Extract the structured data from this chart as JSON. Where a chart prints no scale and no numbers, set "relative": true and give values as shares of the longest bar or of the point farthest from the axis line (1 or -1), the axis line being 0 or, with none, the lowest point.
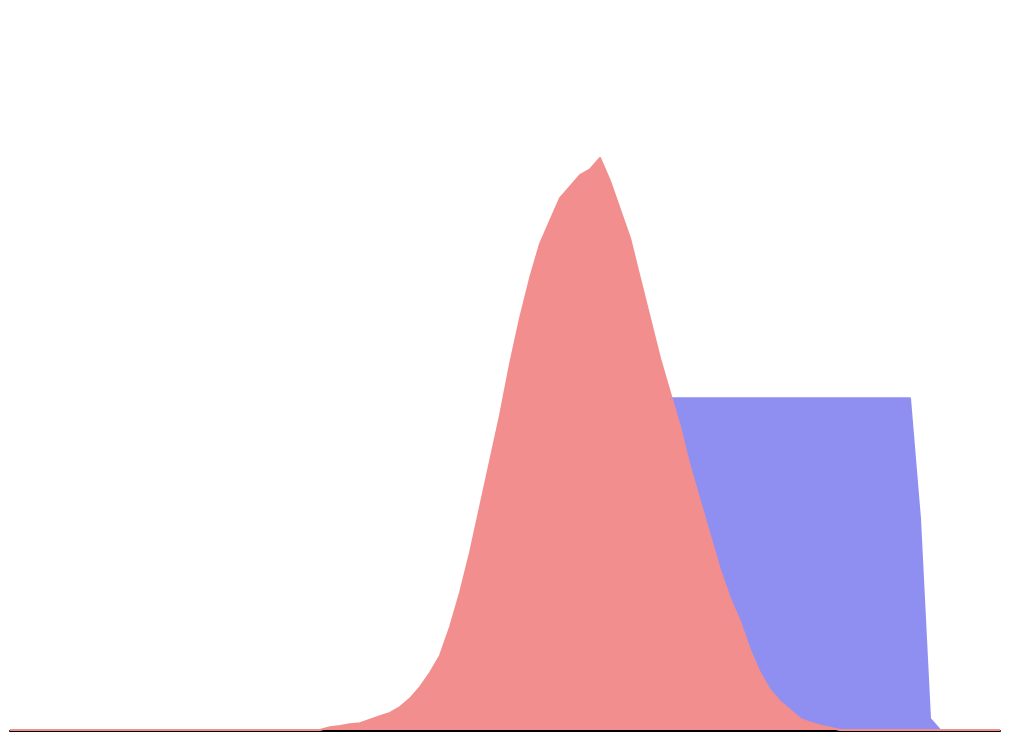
{
  "chart_data": {
    "type": "area",
    "relative": true,
    "grid": false,
    "categories": [
      null,
      null,
      null,
      null,
      null,
      null,
      null,
      null,
      null,
      null,
      null,
      null,
      null,
      null,
      null,
      null,
      null,
      null,
      null,
      null,
      null,
      null,
      null,
      null,
      null,
      null,
      null,
      null,
      null,
      null,
      null,
      null,
      null,
      null,
      null,
      null,
      null,
      null,
      null,
      null,
      null,
      null,
      null,
      null,
      null,
      null,
      null,
      null,
      null,
      null,
      null,
      null,
      null,
      null,
      null,
      null,
      null,
      null,
      null,
      null,
      null,
      null,
      null,
      null,
      null,
      null,
      null,
      null,
      null,
      null,
      null,
      null,
      null,
      null,
      null,
      null,
      null,
      null,
      null,
      null,
      null,
      null,
      null,
      null,
      null,
      null,
      null,
      null,
      null,
      null,
      null,
      null,
      null,
      null,
      null,
      null,
      null,
      null,
      null,
      null
    ],
    "series": [
      {
        "color": "#8f8ff2",
        "values": [
          null,
          null,
          null,
          null,
          null,
          null,
          null,
          null,
          null,
          null,
          null,
          null,
          null,
          null,
          null,
          null,
          null,
          null,
          null,
          null,
          null,
          null,
          null,
          null,
          null,
          null,
          null,
          null,
          null,
          null,
          null,
          null,
          null,
          null,
          null,
          null,
          null,
          null,
          null,
          null,
          null,
          null,
          null,
          null,
          null,
          null,
          null,
          null,
          null,
          null,
          null,
          null,
          null,
          null,
          null,
          null,
          null,
          null,
          null,
          null,
          null,
          null,
          null,
          null,
          null,
          null,
          0.58,
          0.58,
          0.58,
          0.58,
          0.58,
          0.58,
          0.58,
          0.58,
          0.58,
          0.58,
          0.58,
          0.58,
          0.58,
          0.58,
          0.58,
          0.58,
          0.58,
          0.58,
          0.58,
          0.58,
          0.58,
          0.58,
          0.58,
          0.58,
          0.58,
          0.37,
          0.02,
          0,
          0,
          0,
          0,
          0,
          0,
          0
        ]
      },
      {
        "color": "#f28e8e",
        "values": [
          0,
          0,
          0,
          0,
          0,
          0,
          0,
          0,
          0,
          0,
          0,
          0,
          0,
          0,
          0,
          0,
          0,
          0,
          0,
          0,
          0,
          0,
          0,
          0,
          0,
          0,
          0,
          0,
          0,
          0,
          0,
          0,
          0.005,
          0.007,
          0.01,
          0.012,
          0.018,
          0.024,
          0.03,
          0.04,
          0.055,
          0.075,
          0.1,
          0.13,
          0.18,
          0.24,
          0.31,
          0.39,
          0.47,
          0.55,
          0.64,
          0.72,
          0.79,
          0.85,
          0.89,
          0.93,
          0.95,
          0.97,
          0.98,
          1,
          0.96,
          0.91,
          0.86,
          0.79,
          0.72,
          0.65,
          0.59,
          0.53,
          0.46,
          0.4,
          0.34,
          0.28,
          0.23,
          0.19,
          0.14,
          0.1,
          0.07,
          0.05,
          0.035,
          0.02,
          0.013,
          0.008,
          0.004,
          0,
          0,
          0,
          0,
          0,
          0,
          0,
          0,
          0,
          0,
          0,
          0,
          0,
          0,
          0,
          0,
          0
        ]
      }
    ]
  }
}
